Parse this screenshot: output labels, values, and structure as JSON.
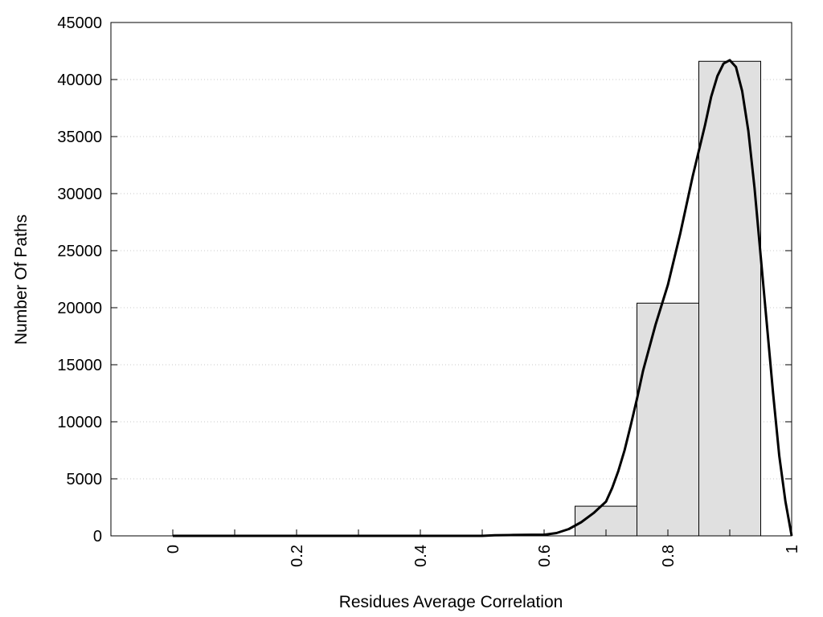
{
  "chart_data": {
    "type": "bar",
    "title": "",
    "xlabel": "Residues Average Correlation",
    "ylabel": "Number Of Paths",
    "xlim": [
      -0.1,
      1.0
    ],
    "ylim": [
      0,
      45000
    ],
    "x_ticks": [
      0,
      0.2,
      0.4,
      0.6,
      0.8,
      1
    ],
    "x_tick_labels": [
      "0",
      "0.2",
      "0.4",
      "0.6",
      "0.8",
      "1"
    ],
    "x_minor_ticks": [
      0.1,
      0.3,
      0.5,
      0.7,
      0.9
    ],
    "y_ticks": [
      0,
      5000,
      10000,
      15000,
      20000,
      25000,
      30000,
      35000,
      40000,
      45000
    ],
    "y_tick_labels": [
      "0",
      "5000",
      "10000",
      "15000",
      "20000",
      "25000",
      "30000",
      "35000",
      "40000",
      "45000"
    ],
    "grid": "horizontal dotted",
    "bin_width": 0.1,
    "bars": [
      {
        "x": 0.0,
        "value": 0
      },
      {
        "x": 0.1,
        "value": 0
      },
      {
        "x": 0.2,
        "value": 0
      },
      {
        "x": 0.3,
        "value": 0
      },
      {
        "x": 0.4,
        "value": 0
      },
      {
        "x": 0.5,
        "value": 0
      },
      {
        "x": 0.6,
        "value": 0
      },
      {
        "x": 0.7,
        "value": 2600
      },
      {
        "x": 0.8,
        "value": 20400
      },
      {
        "x": 0.9,
        "value": 41600
      }
    ],
    "bar_fill": "#e0e0e0",
    "bar_stroke": "#000000",
    "curve": {
      "x": [
        0.0,
        0.5,
        0.52,
        0.55,
        0.58,
        0.6,
        0.62,
        0.64,
        0.66,
        0.68,
        0.7,
        0.71,
        0.72,
        0.73,
        0.74,
        0.75,
        0.76,
        0.78,
        0.8,
        0.82,
        0.84,
        0.86,
        0.87,
        0.88,
        0.89,
        0.9,
        0.91,
        0.92,
        0.93,
        0.94,
        0.95,
        0.96,
        0.97,
        0.98,
        0.99,
        1.0
      ],
      "y": [
        0,
        0,
        50,
        80,
        100,
        100,
        250,
        600,
        1200,
        2000,
        3000,
        4200,
        5700,
        7500,
        9700,
        12000,
        14500,
        18500,
        22000,
        26500,
        31500,
        36000,
        38500,
        40300,
        41400,
        41700,
        41100,
        39000,
        35500,
        30500,
        24500,
        18500,
        12500,
        7000,
        3000,
        0
      ],
      "color": "#000000"
    }
  }
}
